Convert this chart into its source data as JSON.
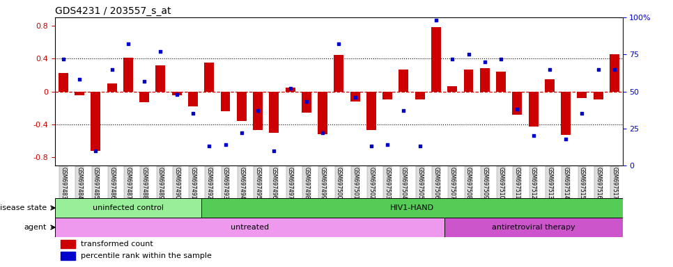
{
  "title": "GDS4231 / 203557_s_at",
  "samples": [
    "GSM697483",
    "GSM697484",
    "GSM697485",
    "GSM697486",
    "GSM697487",
    "GSM697488",
    "GSM697489",
    "GSM697490",
    "GSM697491",
    "GSM697492",
    "GSM697493",
    "GSM697494",
    "GSM697495",
    "GSM697496",
    "GSM697497",
    "GSM697498",
    "GSM697499",
    "GSM697500",
    "GSM697501",
    "GSM697502",
    "GSM697503",
    "GSM697504",
    "GSM697505",
    "GSM697506",
    "GSM697507",
    "GSM697508",
    "GSM697509",
    "GSM697510",
    "GSM697511",
    "GSM697512",
    "GSM697513",
    "GSM697514",
    "GSM697515",
    "GSM697516",
    "GSM697517"
  ],
  "bar_values": [
    0.22,
    -0.05,
    -0.72,
    0.1,
    0.41,
    -0.13,
    0.32,
    -0.05,
    -0.18,
    0.35,
    -0.24,
    -0.36,
    -0.47,
    -0.5,
    0.05,
    -0.26,
    -0.52,
    0.44,
    -0.12,
    -0.47,
    -0.1,
    0.27,
    -0.1,
    0.78,
    0.06,
    0.27,
    0.28,
    0.24,
    -0.28,
    -0.43,
    0.15,
    -0.53,
    -0.08,
    -0.1,
    0.45
  ],
  "dot_values_pct": [
    72,
    58,
    10,
    65,
    82,
    57,
    77,
    48,
    35,
    13,
    14,
    22,
    37,
    10,
    52,
    43,
    22,
    82,
    46,
    13,
    14,
    37,
    13,
    98,
    72,
    75,
    70,
    72,
    38,
    20,
    65,
    18,
    35,
    65,
    65
  ],
  "bar_color": "#cc0000",
  "dot_color": "#0000cc",
  "zero_line_color": "#cc0000",
  "grid_line_color": "#000000",
  "ylim_left": [
    -0.9,
    0.9
  ],
  "ylim_right": [
    0,
    100
  ],
  "yticks_left": [
    -0.8,
    -0.4,
    0.0,
    0.4,
    0.8
  ],
  "ytick_labels_left": [
    "-0.8",
    "-0.4",
    "0",
    "0.4",
    "0.8"
  ],
  "yticks_right_vals": [
    0,
    25,
    50,
    75,
    100
  ],
  "ytick_labels_right": [
    "0",
    "25",
    "50",
    "75",
    "100%"
  ],
  "dotted_hlines": [
    0.4,
    -0.4
  ],
  "disease_state_groups": [
    {
      "label": "uninfected control",
      "start": 0,
      "end": 9,
      "color": "#99ee99"
    },
    {
      "label": "HIV1-HAND",
      "start": 9,
      "end": 35,
      "color": "#55cc55"
    }
  ],
  "agent_groups": [
    {
      "label": "untreated",
      "start": 0,
      "end": 24,
      "color": "#ee99ee"
    },
    {
      "label": "antiretroviral therapy",
      "start": 24,
      "end": 35,
      "color": "#cc55cc"
    }
  ],
  "disease_state_label": "disease state",
  "agent_label": "agent",
  "legend_bar_label": "transformed count",
  "legend_dot_label": "percentile rank within the sample",
  "background_color": "#ffffff",
  "tick_bg_color": "#dddddd"
}
